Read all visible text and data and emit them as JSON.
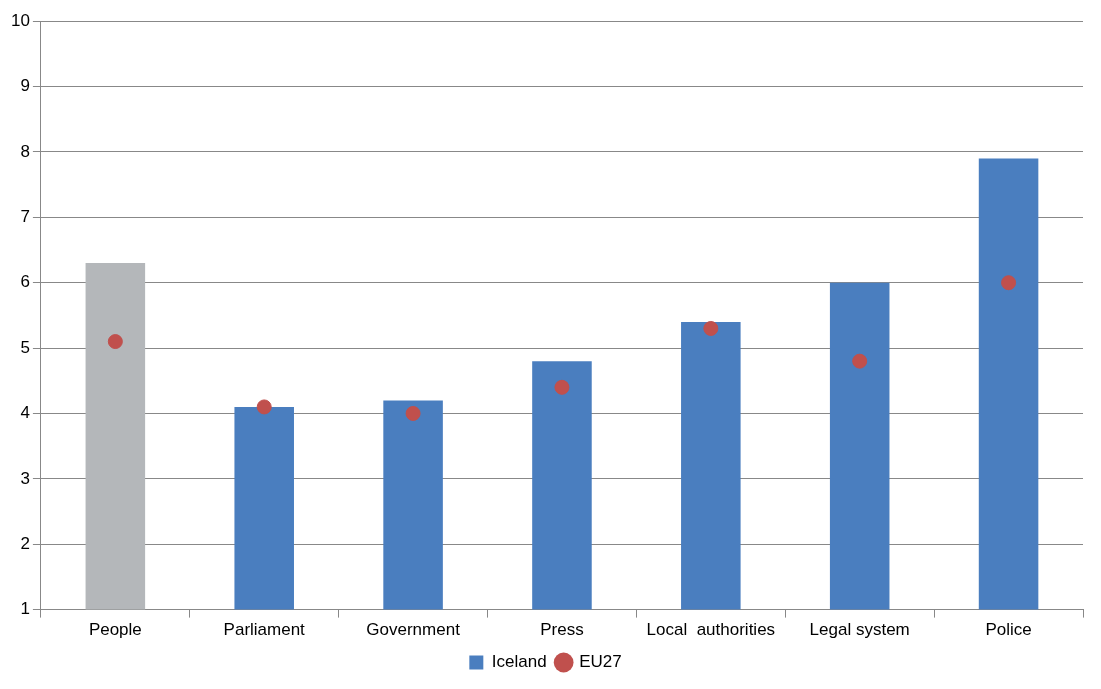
{
  "chart_data": {
    "type": "bar",
    "categories": [
      "People",
      "Parliament",
      "Government",
      "Press",
      "Local  authorities",
      "Legal system",
      "Police"
    ],
    "series": [
      {
        "name": "Iceland",
        "color": "#4a7ebf",
        "colors": [
          "#b4b7ba",
          "#4a7ebf",
          "#4a7ebf",
          "#4a7ebf",
          "#4a7ebf",
          "#4a7ebf",
          "#4a7ebf"
        ],
        "values": [
          6.3,
          4.1,
          4.2,
          4.8,
          5.4,
          6.0,
          7.9
        ]
      },
      {
        "name": "EU27",
        "type": "scatter",
        "color": "#c0504d",
        "values": [
          5.1,
          4.1,
          4.0,
          4.4,
          5.3,
          4.8,
          6.0
        ]
      }
    ],
    "ylim": [
      1,
      10
    ],
    "yticks": [
      1,
      2,
      3,
      4,
      5,
      6,
      7,
      8,
      9,
      10
    ],
    "grid": "y",
    "legend": "bottom",
    "marker": "circle"
  }
}
